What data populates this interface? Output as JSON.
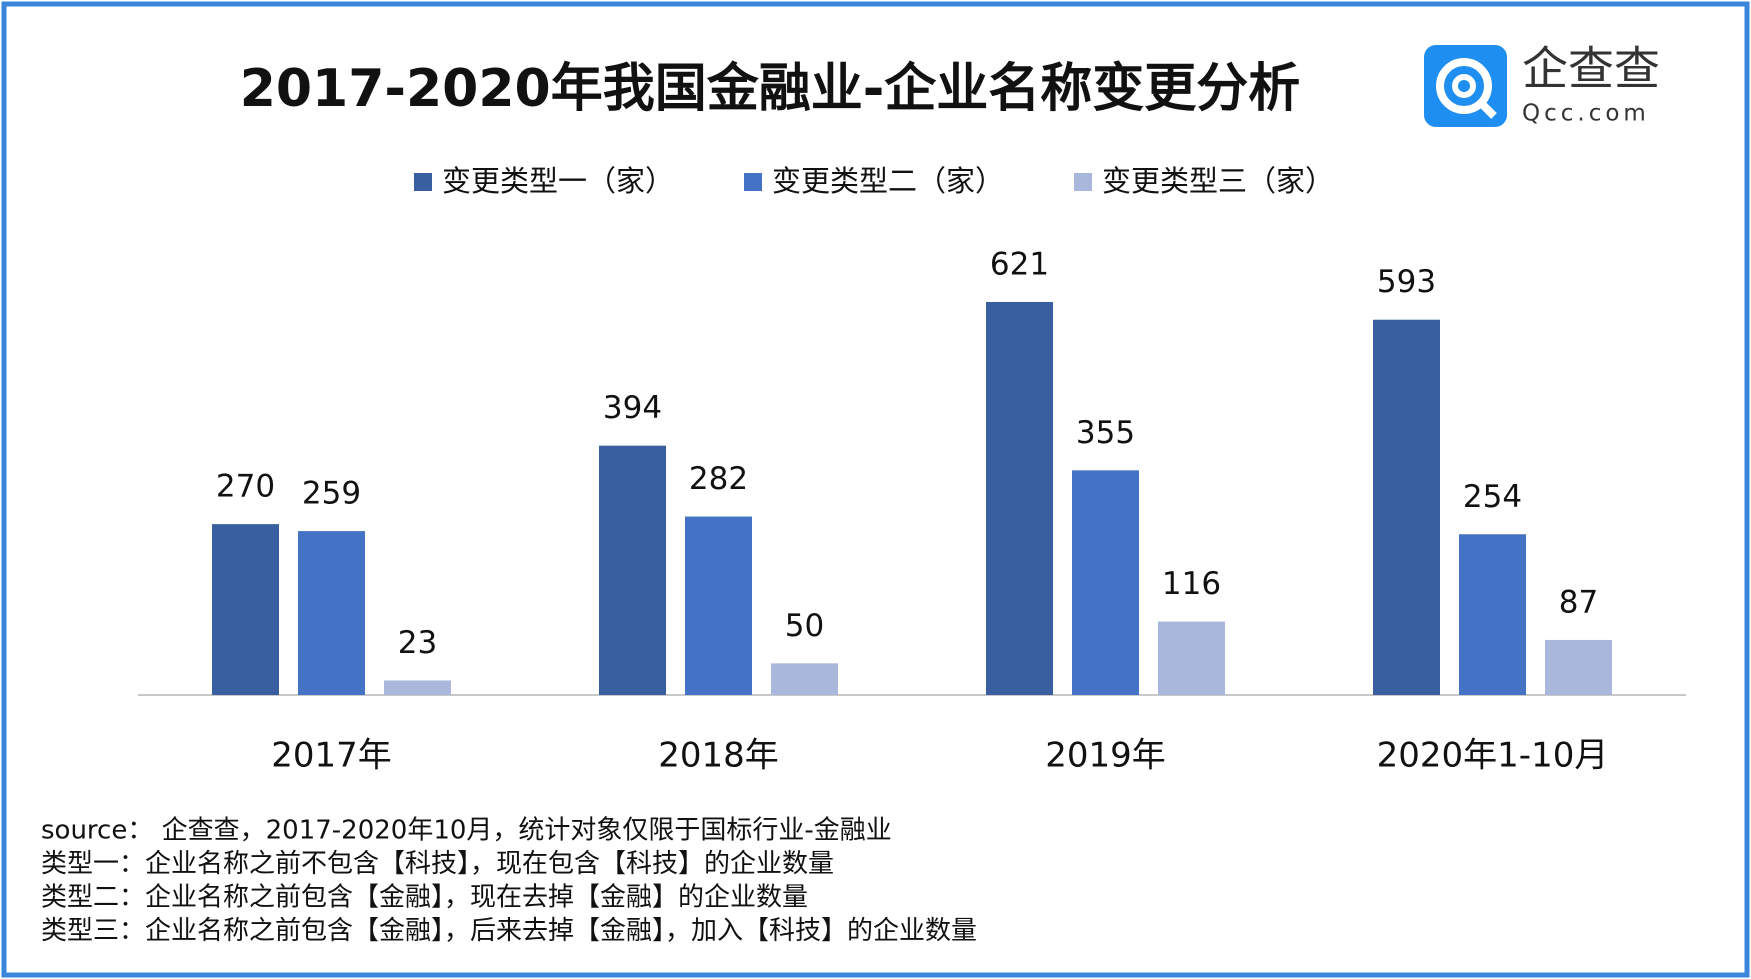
{
  "chart_data": {
    "type": "bar",
    "title": "2017-2020年我国金融业-企业名称变更分析",
    "categories": [
      "2017年",
      "2018年",
      "2019年",
      "2020年1-10月"
    ],
    "series": [
      {
        "name": "变更类型一（家）",
        "color": "#3a5fa0",
        "values": [
          270,
          394,
          621,
          593
        ]
      },
      {
        "name": "变更类型二（家）",
        "color": "#4472c4",
        "values": [
          259,
          282,
          355,
          254
        ]
      },
      {
        "name": "变更类型三（家）",
        "color": "#a9b7dc",
        "values": [
          23,
          50,
          116,
          87
        ]
      }
    ],
    "ylim": [
      0,
      700
    ],
    "legend": "top"
  },
  "notes": [
    "source： 企查查，2017-2020年10月，统计对象仅限于国标行业-金融业",
    "类型一：企业名称之前不包含【科技】，现在包含【科技】的企业数量",
    "类型二：企业名称之前包含【金融】，现在去掉【金融】的企业数量",
    "类型三：企业名称之前包含【金融】，后来去掉【金融】，加入【科技】的企业数量"
  ],
  "logo": {
    "name": "企查查",
    "domain": "Qcc.com"
  }
}
